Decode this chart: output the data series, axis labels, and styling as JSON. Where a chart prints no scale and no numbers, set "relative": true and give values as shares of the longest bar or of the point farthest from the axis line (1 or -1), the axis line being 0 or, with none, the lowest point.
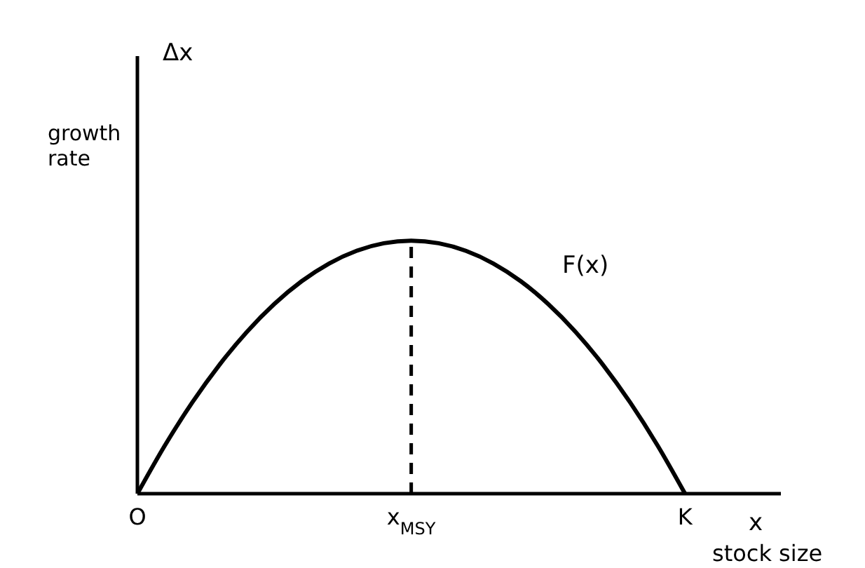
{
  "chart_data": {
    "type": "line",
    "relative": true,
    "xlabel": "stock size",
    "ylabel": "growth rate",
    "categories": [
      "O",
      null,
      null,
      null,
      null,
      null,
      null,
      null,
      null,
      null,
      "x$_{MSY}$",
      null,
      null,
      null,
      null,
      null,
      null,
      null,
      null,
      null,
      "K",
      null,
      null,
      null
    ],
    "series": [
      {
        "name": "F(x)",
        "color": "#000000",
        "values": [
          0,
          0.19,
          0.36,
          0.51,
          0.64,
          0.75,
          0.84,
          0.91,
          0.96,
          0.99,
          1,
          0.99,
          0.96,
          0.91,
          0.84,
          0.75,
          0.64,
          0.51,
          0.36,
          0.19,
          0,
          null,
          null,
          null
        ]
      }
    ],
    "ref_lines": [
      {
        "axis": "x",
        "value": "x$_{MSY}$",
        "line_style": "dashed",
        "color": "#000000"
      }
    ],
    "annotations": [
      "Δx",
      "x"
    ],
    "marker": "none",
    "grid": false,
    "legend": false
  }
}
